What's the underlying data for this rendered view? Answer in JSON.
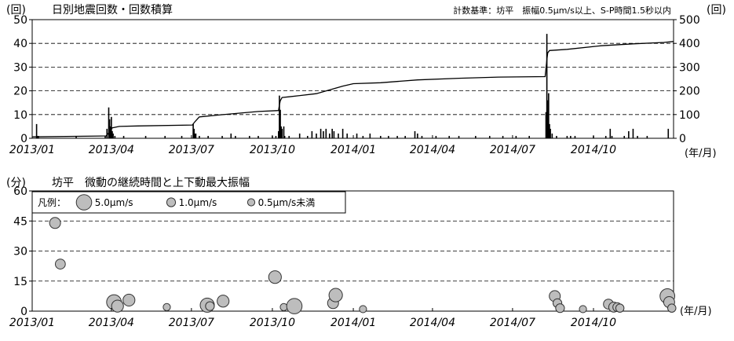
{
  "chart_data": [
    {
      "type": "bar",
      "title": "日別地震回数・回数積算",
      "criteria": "計数基準：坊平　振幅0.5μm/s以上、S-P時間1.5秒以内",
      "ylabel": "(回)",
      "y2label": "(回)",
      "xunit": "(年/月)",
      "ylim": [
        0,
        50
      ],
      "y2lim": [
        0,
        500
      ],
      "yticks": [
        "0",
        "10",
        "20",
        "30",
        "40",
        "50"
      ],
      "y2ticks": [
        "0",
        "100",
        "200",
        "300",
        "400",
        "500"
      ],
      "xlim": [
        "2013-01-01",
        "2014-12-31"
      ],
      "x_ticks": [
        "2013/01",
        "2013/04",
        "2013/07",
        "2013/10",
        "2014/01",
        "2014/04",
        "2014/07",
        "2014/10"
      ],
      "grid": "horizontal-dashed",
      "series": [
        {
          "values": [
            [
              "2013-01-06",
              6
            ],
            [
              "2013-01-07",
              1
            ],
            [
              "2013-01-08",
              1
            ],
            [
              "2013-02-20",
              1
            ],
            [
              "2013-03-25",
              1
            ],
            [
              "2013-03-27",
              4
            ],
            [
              "2013-03-29",
              13
            ],
            [
              "2013-03-30",
              8
            ],
            [
              "2013-03-31",
              5
            ],
            [
              "2013-04-01",
              9
            ],
            [
              "2013-04-02",
              3
            ],
            [
              "2013-04-03",
              2
            ],
            [
              "2013-04-05",
              1
            ],
            [
              "2013-04-15",
              1
            ],
            [
              "2013-05-10",
              1
            ],
            [
              "2013-06-01",
              1
            ],
            [
              "2013-06-20",
              1
            ],
            [
              "2013-07-03",
              6
            ],
            [
              "2013-07-04",
              4
            ],
            [
              "2013-07-05",
              2
            ],
            [
              "2013-07-06",
              2
            ],
            [
              "2013-07-10",
              1
            ],
            [
              "2013-07-20",
              1
            ],
            [
              "2013-08-05",
              1
            ],
            [
              "2013-08-15",
              2
            ],
            [
              "2013-08-20",
              1
            ],
            [
              "2013-09-05",
              1
            ],
            [
              "2013-09-15",
              1
            ],
            [
              "2013-10-01",
              1
            ],
            [
              "2013-10-05",
              1
            ],
            [
              "2013-10-08",
              3
            ],
            [
              "2013-10-09",
              18
            ],
            [
              "2013-10-10",
              12
            ],
            [
              "2013-10-11",
              5
            ],
            [
              "2013-10-12",
              4
            ],
            [
              "2013-10-14",
              5
            ],
            [
              "2013-10-15",
              1
            ],
            [
              "2013-10-20",
              1
            ],
            [
              "2013-11-01",
              2
            ],
            [
              "2013-11-10",
              1
            ],
            [
              "2013-11-15",
              3
            ],
            [
              "2013-11-20",
              2
            ],
            [
              "2013-11-25",
              4
            ],
            [
              "2013-11-28",
              3
            ],
            [
              "2013-12-01",
              4
            ],
            [
              "2013-12-05",
              2
            ],
            [
              "2013-12-08",
              4
            ],
            [
              "2013-12-10",
              3
            ],
            [
              "2013-12-15",
              2
            ],
            [
              "2013-12-20",
              4
            ],
            [
              "2013-12-25",
              2
            ],
            [
              "2014-01-05",
              2
            ],
            [
              "2014-01-12",
              1
            ],
            [
              "2014-01-20",
              2
            ],
            [
              "2014-02-01",
              1
            ],
            [
              "2014-02-10",
              1
            ],
            [
              "2014-02-20",
              1
            ],
            [
              "2014-03-01",
              1
            ],
            [
              "2014-03-12",
              3
            ],
            [
              "2014-03-15",
              2
            ],
            [
              "2014-03-20",
              1
            ],
            [
              "2014-04-05",
              1
            ],
            [
              "2014-04-20",
              1
            ],
            [
              "2014-05-01",
              1
            ],
            [
              "2014-05-20",
              1
            ],
            [
              "2014-06-05",
              1
            ],
            [
              "2014-06-20",
              1
            ],
            [
              "2014-07-05",
              1
            ],
            [
              "2014-07-20",
              1
            ],
            [
              "2014-08-08",
              11
            ],
            [
              "2014-08-09",
              44
            ],
            [
              "2014-08-10",
              16
            ],
            [
              "2014-08-11",
              19
            ],
            [
              "2014-08-12",
              6
            ],
            [
              "2014-08-13",
              4
            ],
            [
              "2014-08-15",
              2
            ],
            [
              "2014-08-20",
              1
            ],
            [
              "2014-09-01",
              1
            ],
            [
              "2014-09-05",
              1
            ],
            [
              "2014-09-10",
              1
            ],
            [
              "2014-10-01",
              1
            ],
            [
              "2014-10-15",
              1
            ],
            [
              "2014-10-20",
              4
            ],
            [
              "2014-10-22",
              1
            ],
            [
              "2014-11-05",
              1
            ],
            [
              "2014-11-10",
              3
            ],
            [
              "2014-11-15",
              4
            ],
            [
              "2014-11-20",
              1
            ],
            [
              "2014-12-01",
              1
            ],
            [
              "2014-12-25",
              4
            ]
          ]
        }
      ],
      "cumulative": [
        [
          "2013-01-01",
          6
        ],
        [
          "2013-03-26",
          10
        ],
        [
          "2013-03-29",
          23
        ],
        [
          "2013-04-02",
          44
        ],
        [
          "2013-04-10",
          50
        ],
        [
          "2013-05-01",
          52
        ],
        [
          "2013-07-02",
          56
        ],
        [
          "2013-07-05",
          70
        ],
        [
          "2013-07-10",
          90
        ],
        [
          "2013-08-01",
          98
        ],
        [
          "2013-09-15",
          113
        ],
        [
          "2013-10-08",
          117
        ],
        [
          "2013-10-09",
          140
        ],
        [
          "2013-10-10",
          158
        ],
        [
          "2013-10-12",
          172
        ],
        [
          "2013-10-20",
          175
        ],
        [
          "2013-11-20",
          188
        ],
        [
          "2013-12-20",
          220
        ],
        [
          "2014-01-01",
          230
        ],
        [
          "2014-02-01",
          234
        ],
        [
          "2014-03-15",
          246
        ],
        [
          "2014-05-01",
          253
        ],
        [
          "2014-06-15",
          258
        ],
        [
          "2014-08-07",
          260
        ],
        [
          "2014-08-09",
          330
        ],
        [
          "2014-08-10",
          360
        ],
        [
          "2014-08-12",
          370
        ],
        [
          "2014-09-01",
          375
        ],
        [
          "2014-10-10",
          390
        ],
        [
          "2014-11-15",
          398
        ],
        [
          "2014-12-20",
          404
        ],
        [
          "2014-12-31",
          408
        ]
      ]
    },
    {
      "type": "scatter",
      "title": "坊平　微動の継続時間と上下動最大振幅",
      "ylabel": "(分)",
      "xunit": "(年/月)",
      "ylim": [
        0,
        60
      ],
      "yticks": [
        "0",
        "15",
        "30",
        "45",
        "60"
      ],
      "xlim": [
        "2013-01-01",
        "2014-12-31"
      ],
      "x_ticks": [
        "2013/01",
        "2013/04",
        "2013/07",
        "2013/10",
        "2014/01",
        "2014/04",
        "2014/07",
        "2014/10"
      ],
      "grid": "horizontal-dashed",
      "legend": {
        "title": "凡例：",
        "placement": "top-left",
        "items": [
          {
            "label": "5.0μm/s",
            "amplitude": 5.0
          },
          {
            "label": "1.0μm/s",
            "amplitude": 1.0
          },
          {
            "label": "0.5μm/s未満",
            "amplitude": 0.5
          }
        ]
      },
      "points": [
        {
          "date": "2013-01-27",
          "duration": 44,
          "amplitude": 2.0
        },
        {
          "date": "2013-02-02",
          "duration": 23.5,
          "amplitude": 1.5
        },
        {
          "date": "2013-04-04",
          "duration": 4.5,
          "amplitude": 4.5
        },
        {
          "date": "2013-04-08",
          "duration": 2.5,
          "amplitude": 2.5
        },
        {
          "date": "2013-04-21",
          "duration": 5.5,
          "amplitude": 2.5
        },
        {
          "date": "2013-06-03",
          "duration": 2,
          "amplitude": 0.5
        },
        {
          "date": "2013-07-19",
          "duration": 3,
          "amplitude": 4.0
        },
        {
          "date": "2013-07-22",
          "duration": 2.5,
          "amplitude": 1.0
        },
        {
          "date": "2013-08-06",
          "duration": 5,
          "amplitude": 2.5
        },
        {
          "date": "2013-10-04",
          "duration": 17,
          "amplitude": 3.0
        },
        {
          "date": "2013-10-14",
          "duration": 2,
          "amplitude": 0.5
        },
        {
          "date": "2013-10-26",
          "duration": 2.5,
          "amplitude": 5.0
        },
        {
          "date": "2013-12-09",
          "duration": 4,
          "amplitude": 2.0
        },
        {
          "date": "2013-12-12",
          "duration": 8,
          "amplitude": 3.5
        },
        {
          "date": "2014-01-12",
          "duration": 1,
          "amplitude": 0.5
        },
        {
          "date": "2014-08-18",
          "duration": 7.5,
          "amplitude": 2.0
        },
        {
          "date": "2014-08-21",
          "duration": 4,
          "amplitude": 1.0
        },
        {
          "date": "2014-08-24",
          "duration": 1.5,
          "amplitude": 1.0
        },
        {
          "date": "2014-09-19",
          "duration": 1,
          "amplitude": 0.5
        },
        {
          "date": "2014-10-18",
          "duration": 3.5,
          "amplitude": 1.5
        },
        {
          "date": "2014-10-24",
          "duration": 2,
          "amplitude": 1.5
        },
        {
          "date": "2014-10-28",
          "duration": 2,
          "amplitude": 1.0
        },
        {
          "date": "2014-10-31",
          "duration": 1.5,
          "amplitude": 0.8
        },
        {
          "date": "2014-12-24",
          "duration": 7.5,
          "amplitude": 4.5
        },
        {
          "date": "2014-12-26",
          "duration": 4.5,
          "amplitude": 2.0
        },
        {
          "date": "2014-12-29",
          "duration": 1.5,
          "amplitude": 0.8
        }
      ]
    }
  ]
}
